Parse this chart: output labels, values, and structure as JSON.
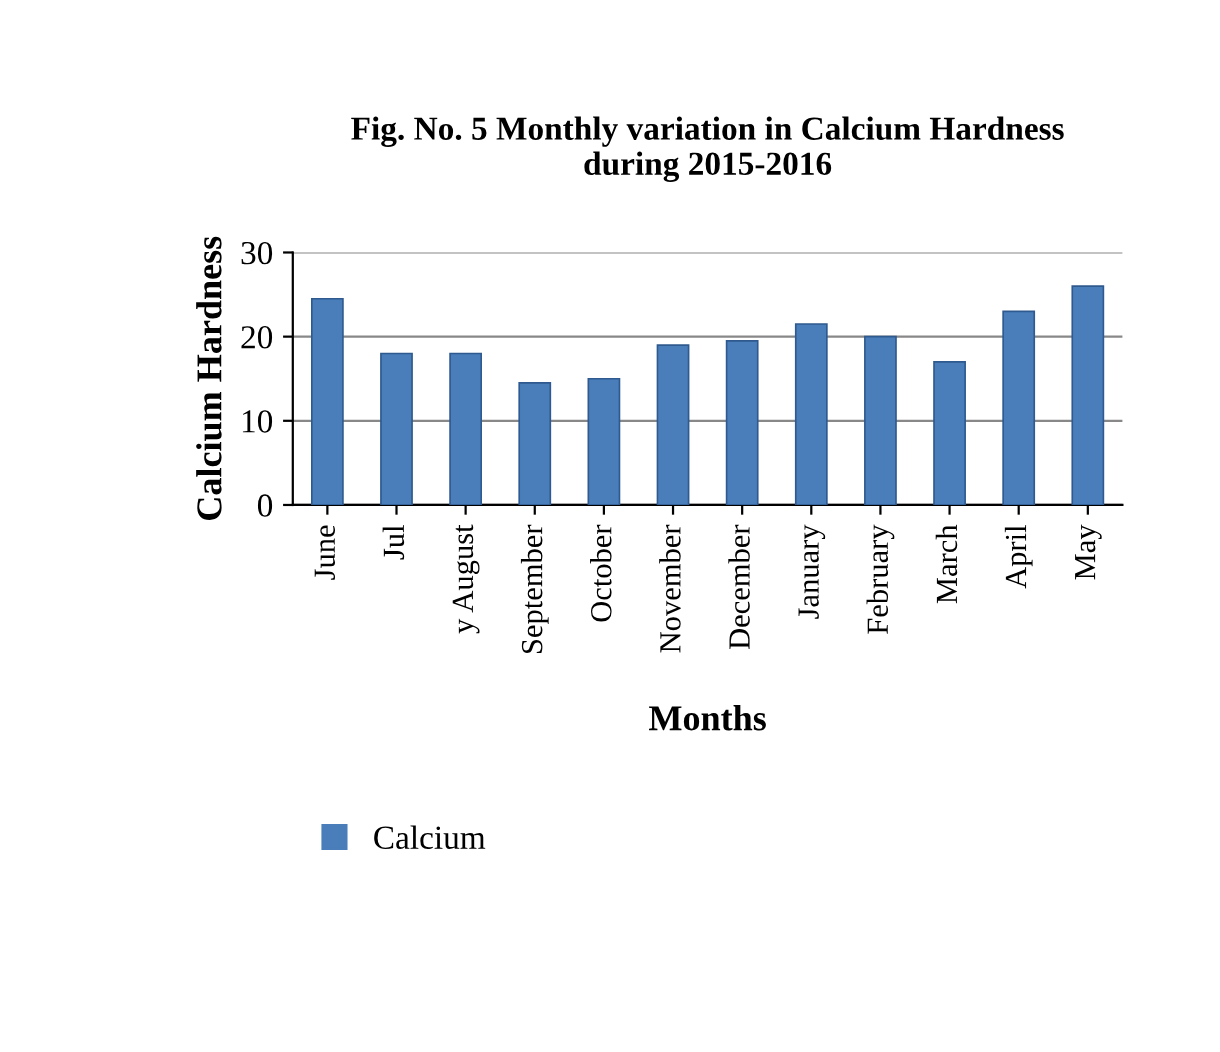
{
  "chart_data": {
    "type": "bar",
    "title": "Fig. No. 5 Monthly variation in Calcium Hardness\nduring 2015-2016",
    "xlabel": "Months",
    "ylabel": "Calcium Hardness",
    "categories": [
      "June",
      "Jul",
      "y August",
      "September",
      "October",
      "November",
      "December",
      "January",
      "February",
      "March",
      "April",
      "May"
    ],
    "series": [
      {
        "name": "Calcium",
        "color": "#4a7ebb",
        "values": [
          24.5,
          18,
          18,
          14.5,
          15,
          19,
          19.5,
          21.5,
          20,
          17,
          23,
          26
        ]
      }
    ],
    "ylim": [
      0,
      30
    ],
    "yticks": [
      0,
      10,
      20,
      30
    ],
    "grid": "y",
    "legend": "bottom"
  }
}
